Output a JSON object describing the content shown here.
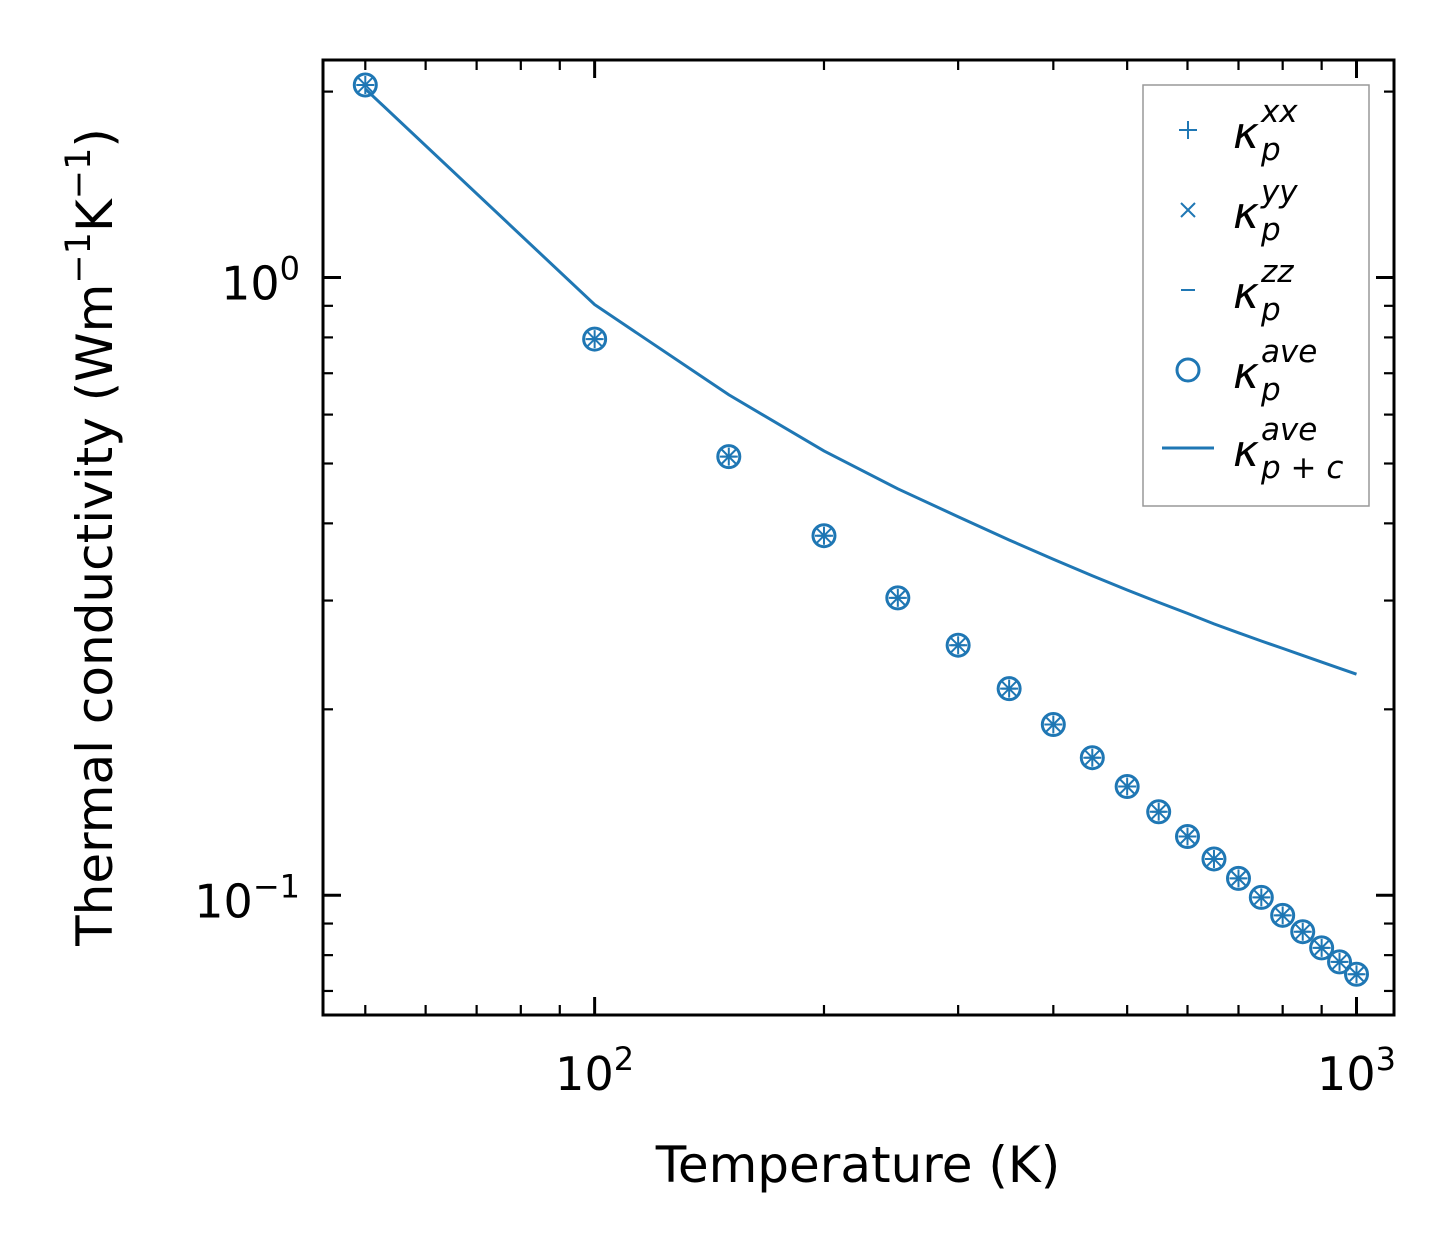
{
  "chart_data": {
    "type": "scatter",
    "xscale": "log",
    "yscale": "log",
    "xlim": [
      44,
      1120
    ],
    "ylim": [
      0.064,
      2.25
    ],
    "xlabel": "Temperature (K)",
    "ylabel": {
      "base": "Thermal conductivity (Wm",
      "exp1": "−1",
      "mid": "K",
      "exp2": "−1",
      "end": ")"
    },
    "xticks": [
      {
        "value": 100,
        "base": "10",
        "exp": "2"
      },
      {
        "value": 1000,
        "base": "10",
        "exp": "3"
      }
    ],
    "yticks": [
      {
        "value": 1,
        "base": "10",
        "exp": "0"
      },
      {
        "value": 0.1,
        "base": "10",
        "exp": "−1"
      }
    ],
    "color": "#1f77b4",
    "x": [
      50,
      100,
      150,
      200,
      250,
      300,
      350,
      400,
      450,
      500,
      550,
      600,
      650,
      700,
      750,
      800,
      850,
      900,
      950,
      1000
    ],
    "series": [
      {
        "name": "kappa_p_xx",
        "label": "κ",
        "sub": "p",
        "sup": "xx",
        "marker": "plus",
        "values": [
          2.05,
          0.795,
          0.513,
          0.382,
          0.303,
          0.254,
          0.216,
          0.189,
          0.167,
          0.15,
          0.1365,
          0.1245,
          0.1145,
          0.1065,
          0.0992,
          0.0928,
          0.0873,
          0.0822,
          0.078,
          0.0745
        ]
      },
      {
        "name": "kappa_p_yy",
        "label": "κ",
        "sub": "p",
        "sup": "yy",
        "marker": "x",
        "values": [
          2.05,
          0.795,
          0.513,
          0.382,
          0.303,
          0.254,
          0.216,
          0.189,
          0.167,
          0.15,
          0.1365,
          0.1245,
          0.1145,
          0.1065,
          0.0992,
          0.0928,
          0.0873,
          0.0822,
          0.078,
          0.0745
        ]
      },
      {
        "name": "kappa_p_zz",
        "label": "κ",
        "sub": "p",
        "sup": "zz",
        "marker": "hline",
        "values": [
          2.05,
          0.795,
          0.513,
          0.382,
          0.303,
          0.254,
          0.216,
          0.189,
          0.167,
          0.15,
          0.1365,
          0.1245,
          0.1145,
          0.1065,
          0.0992,
          0.0928,
          0.0873,
          0.0822,
          0.078,
          0.0745
        ]
      },
      {
        "name": "kappa_p_ave",
        "label": "κ",
        "sub": "p",
        "sup": "ave",
        "marker": "circle",
        "values": [
          2.05,
          0.795,
          0.513,
          0.382,
          0.303,
          0.254,
          0.216,
          0.189,
          0.167,
          0.15,
          0.1365,
          0.1245,
          0.1145,
          0.1065,
          0.0992,
          0.0928,
          0.0873,
          0.0822,
          0.078,
          0.0745
        ]
      },
      {
        "name": "kappa_pc_ave",
        "label": "κ",
        "sub": "p + c",
        "sup": "ave",
        "marker": "line",
        "values": [
          2.02,
          0.904,
          0.646,
          0.524,
          0.455,
          0.41,
          0.376,
          0.35,
          0.329,
          0.312,
          0.298,
          0.286,
          0.275,
          0.266,
          0.258,
          0.251,
          0.2445,
          0.2385,
          0.233,
          0.228
        ]
      }
    ],
    "legend": "top-right"
  }
}
